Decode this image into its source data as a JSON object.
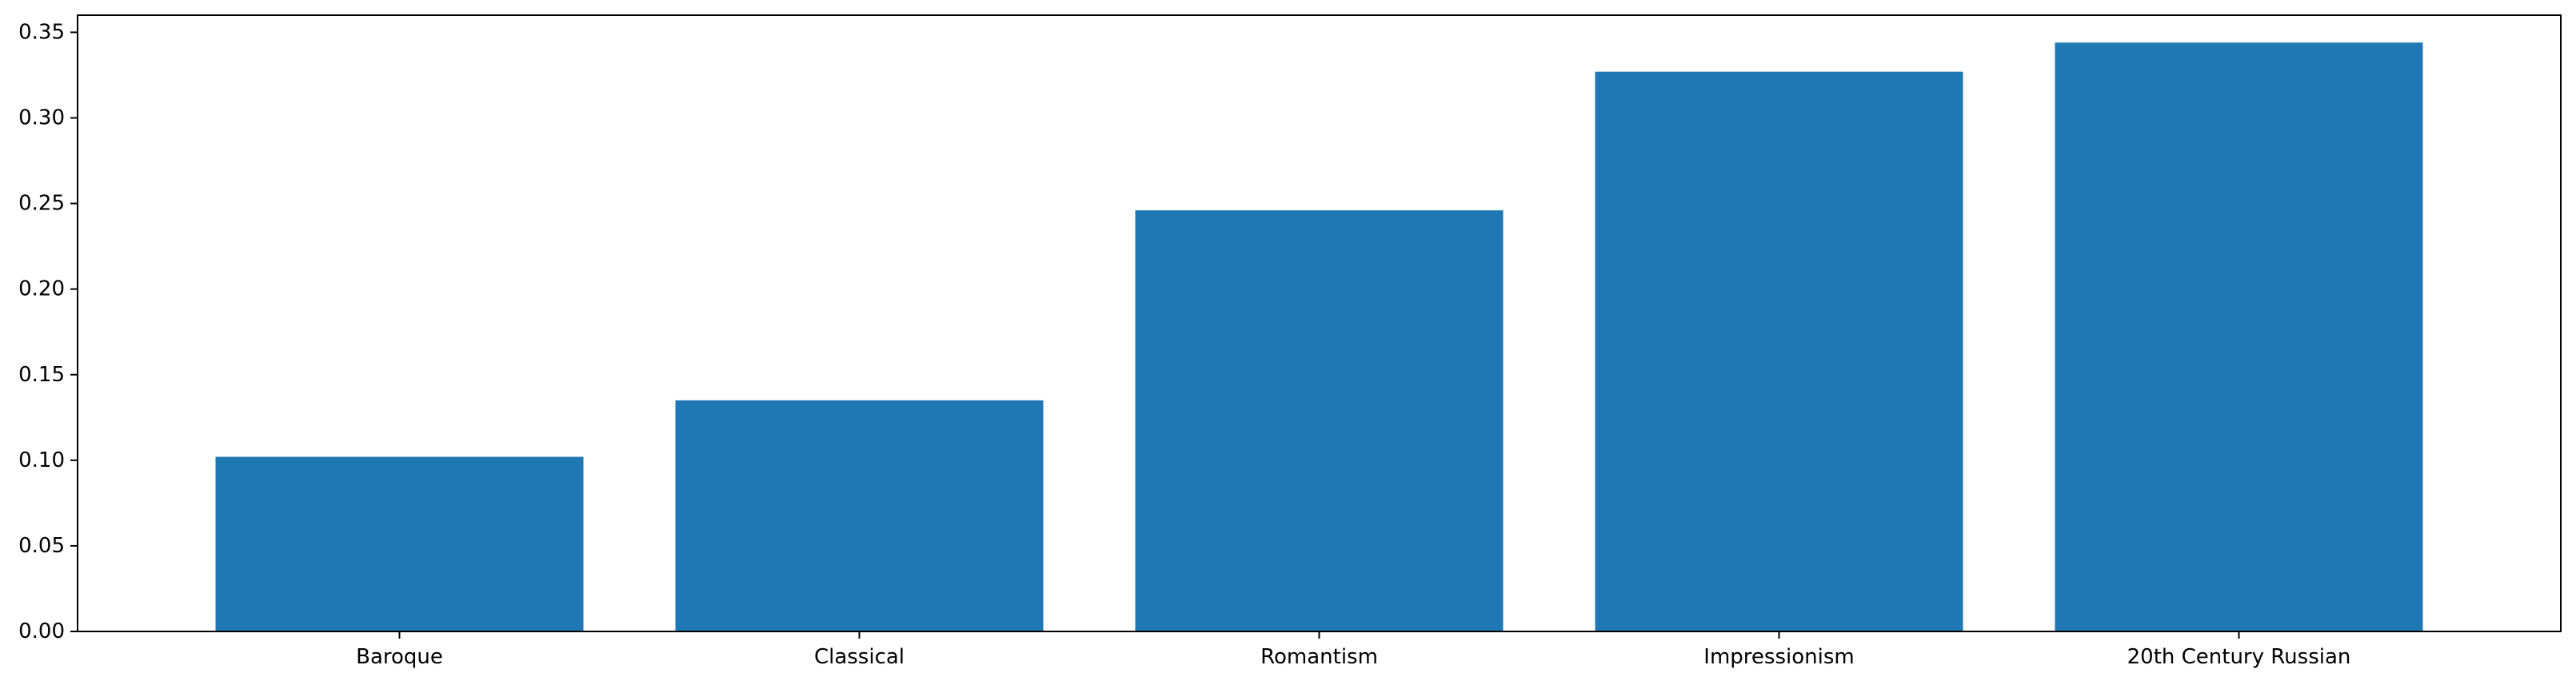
{
  "chart_data": {
    "type": "bar",
    "categories": [
      "Baroque",
      "Classical",
      "Romantism",
      "Impressionism",
      "20th Century Russian"
    ],
    "values": [
      0.102,
      0.135,
      0.246,
      0.327,
      0.344
    ],
    "yticks": [
      "0.00",
      "0.05",
      "0.10",
      "0.15",
      "0.20",
      "0.25",
      "0.30",
      "0.35"
    ],
    "ylim": [
      0,
      0.36
    ],
    "title": "",
    "xlabel": "",
    "ylabel": "",
    "grid": false,
    "bar_color": "#1f77b4"
  }
}
